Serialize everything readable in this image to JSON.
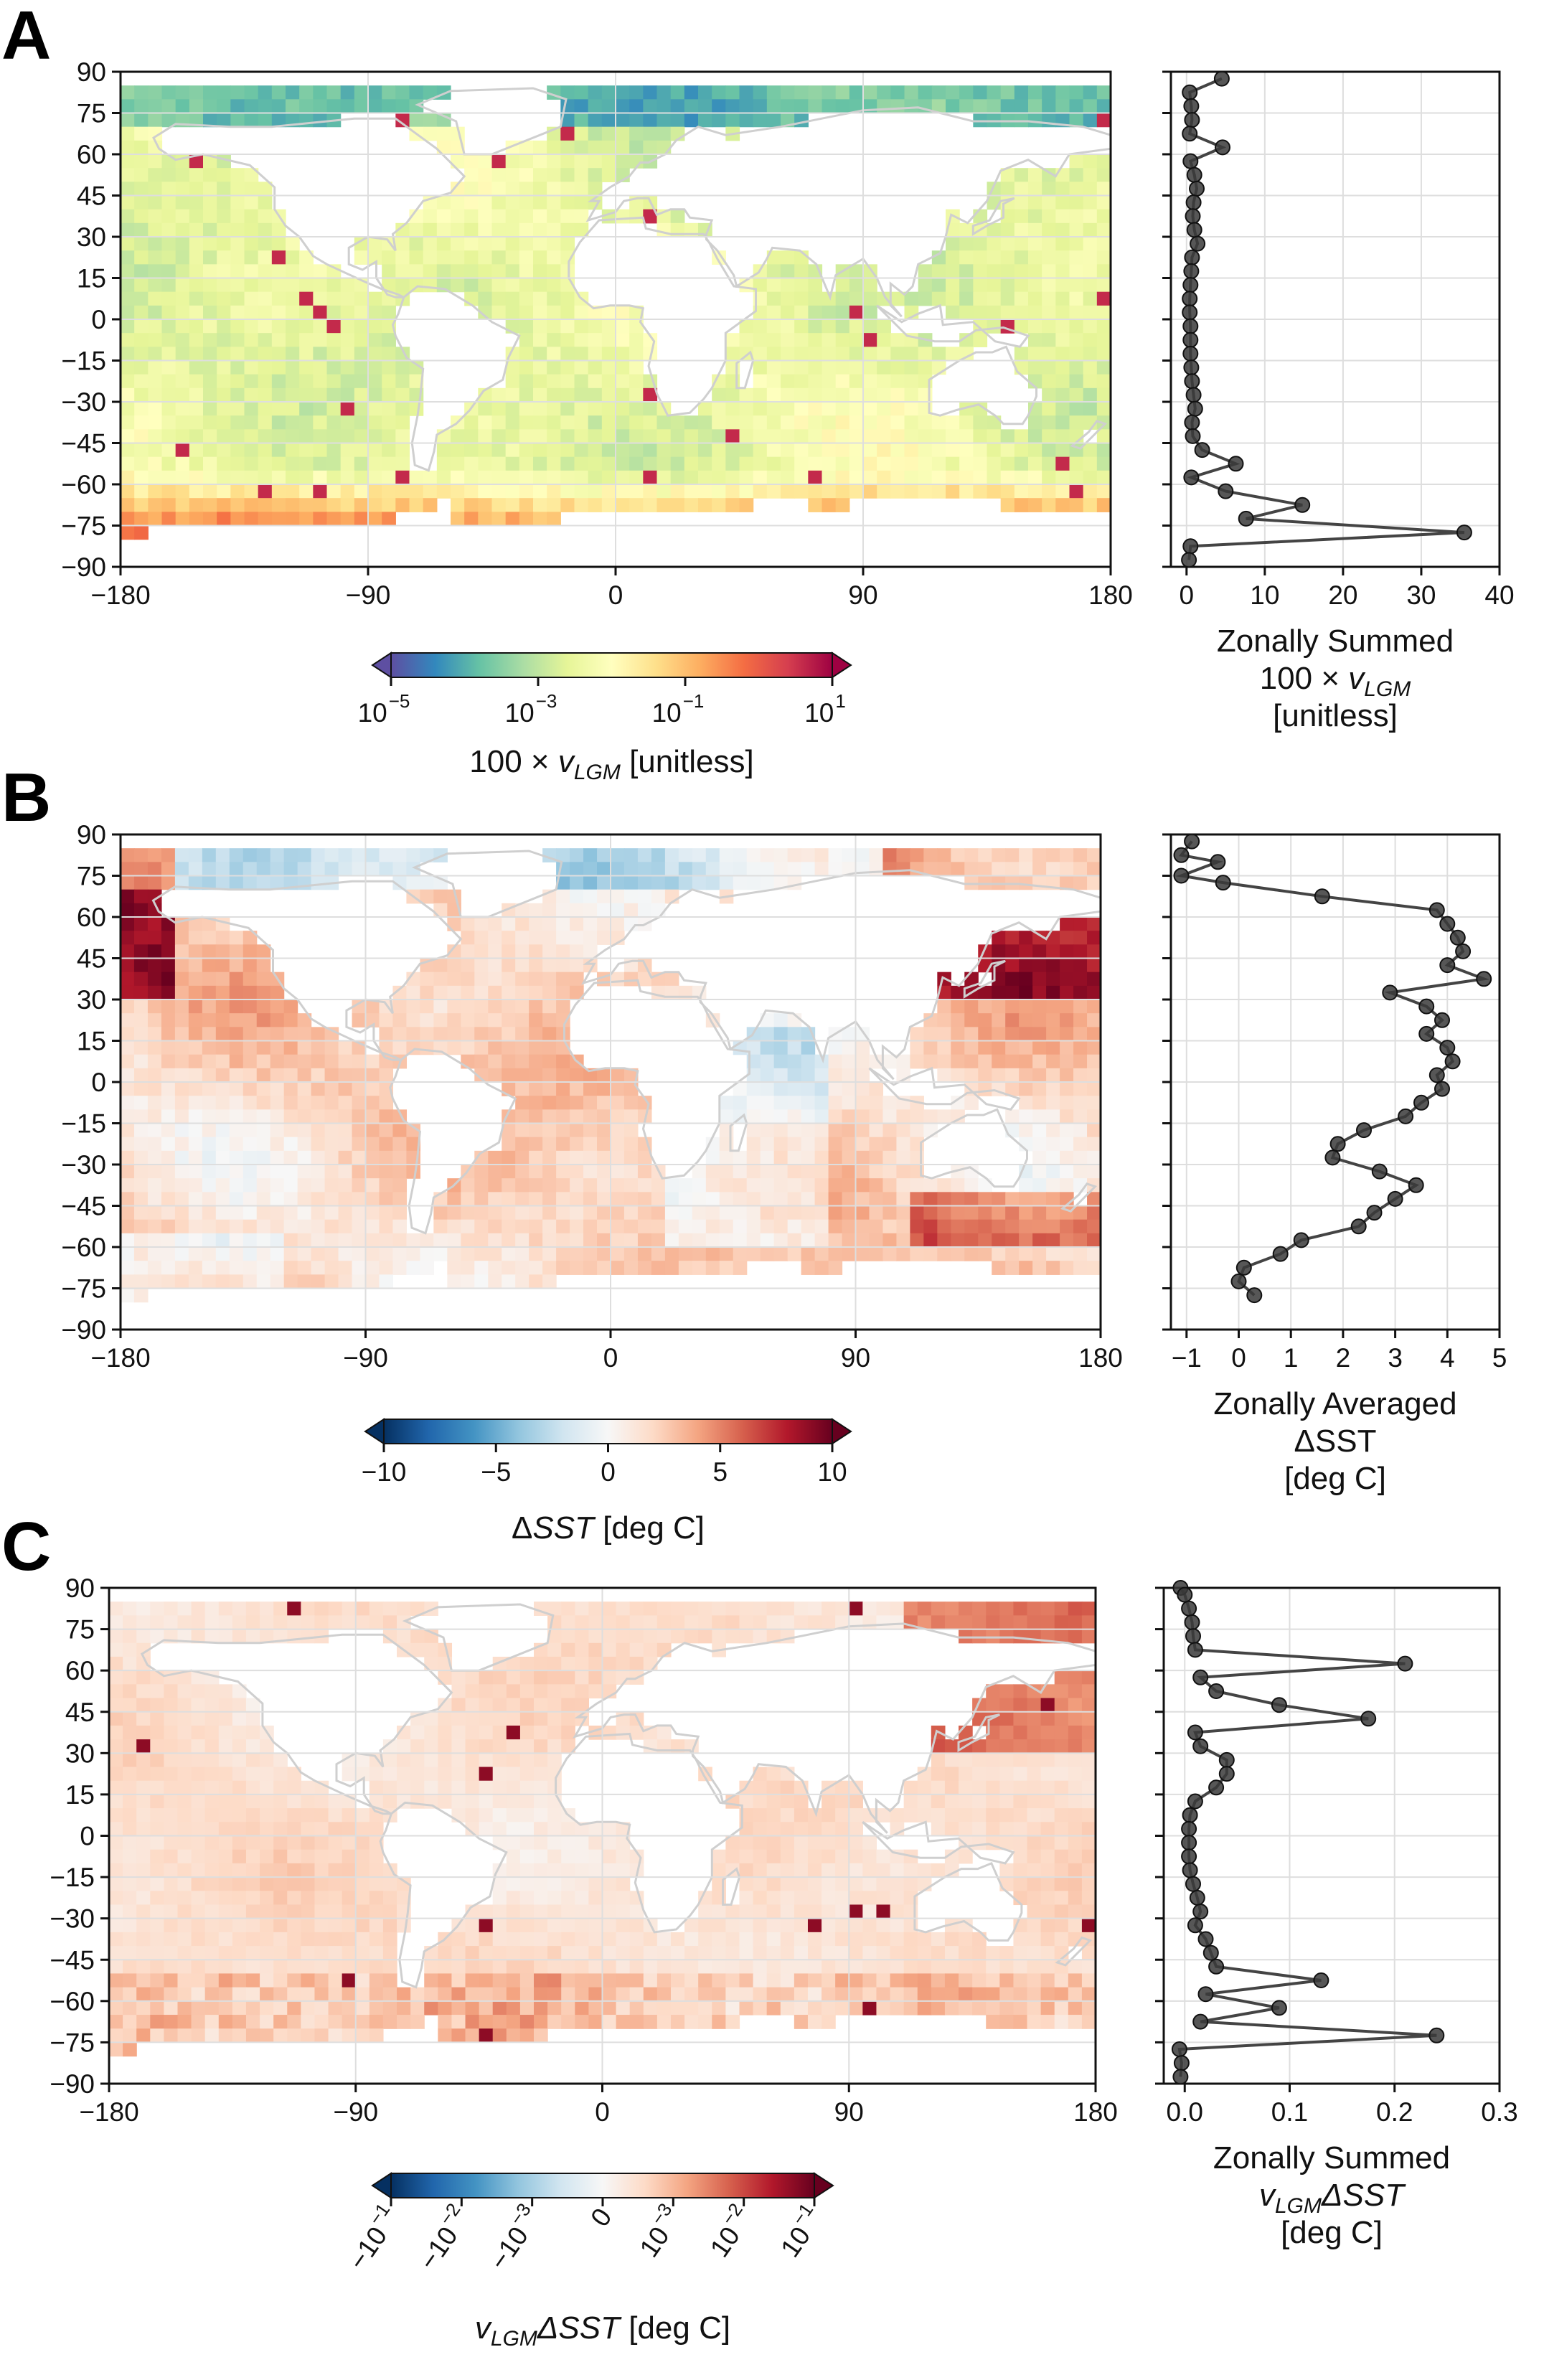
{
  "colors": {
    "spectral_r": [
      "#5e4fa2",
      "#3288bd",
      "#66c2a5",
      "#abdda4",
      "#e6f598",
      "#ffffbf",
      "#fee08b",
      "#fdae61",
      "#f46d43",
      "#d53e4f",
      "#9e0142"
    ],
    "rdbu_r": [
      "#053061",
      "#2166ac",
      "#4393c3",
      "#92c5de",
      "#d1e5f0",
      "#f7f7f7",
      "#fddbc7",
      "#f4a582",
      "#d6604d",
      "#b2182b",
      "#67001f"
    ],
    "land": "#ffffff",
    "coast": "#cfcfcf",
    "grid": "#dedede",
    "profile_line": "#444444",
    "profile_marker": "#3a3a3a"
  },
  "panels": [
    {
      "letter": "A",
      "map": {
        "x_ticks": [
          "−180",
          "−90",
          "0",
          "90",
          "180"
        ],
        "y_ticks": [
          "90",
          "75",
          "60",
          "45",
          "30",
          "15",
          "0",
          "−15",
          "−30",
          "−45",
          "−60",
          "−75",
          "−90"
        ],
        "xlim": [
          -180,
          180
        ],
        "ylim": [
          -90,
          90
        ]
      },
      "colorbar": {
        "ticks": [
          {
            "base": "10",
            "exp": "−5"
          },
          {
            "base": "10",
            "exp": "−3"
          },
          {
            "base": "10",
            "exp": "−1"
          },
          {
            "base": "10",
            "exp": "1"
          }
        ],
        "label_parts": [
          "100 × ",
          "v",
          "LGM",
          " [unitless]"
        ],
        "scale": "log"
      },
      "profile": {
        "x_ticks": [
          "0",
          "10",
          "20",
          "30",
          "40"
        ],
        "xlim": [
          -2,
          40
        ],
        "xlabel_lines": [
          "Zonally Summed",
          "100 × v_LGM",
          "[unitless]"
        ],
        "xlabel_parts": {
          "line1": "Zonally Summed",
          "line2_pre": "100 × ",
          "line2_var": "v",
          "line2_sub": "LGM",
          "line3": "[unitless]"
        }
      }
    },
    {
      "letter": "B",
      "map": {
        "x_ticks": [
          "−180",
          "−90",
          "0",
          "90",
          "180"
        ],
        "y_ticks": [
          "90",
          "75",
          "60",
          "45",
          "30",
          "15",
          "0",
          "−15",
          "−30",
          "−45",
          "−60",
          "−75",
          "−90"
        ],
        "xlim": [
          -180,
          180
        ],
        "ylim": [
          -90,
          90
        ]
      },
      "colorbar": {
        "ticks": [
          "−10",
          "−5",
          "0",
          "5",
          "10"
        ],
        "label_parts": [
          "Δ",
          "SST",
          " [deg C]"
        ],
        "range": [
          -10,
          10
        ]
      },
      "profile": {
        "x_ticks": [
          "−1",
          "0",
          "1",
          "2",
          "3",
          "4",
          "5"
        ],
        "xlim": [
          -1.3,
          5
        ],
        "xlabel_lines": [
          "Zonally Averaged",
          "ΔSST",
          "[deg C]"
        ]
      }
    },
    {
      "letter": "C",
      "map": {
        "x_ticks": [
          "−180",
          "−90",
          "0",
          "90",
          "180"
        ],
        "y_ticks": [
          "90",
          "75",
          "60",
          "45",
          "30",
          "15",
          "0",
          "−15",
          "−30",
          "−45",
          "−60",
          "−75",
          "−90"
        ],
        "xlim": [
          -180,
          180
        ],
        "ylim": [
          -90,
          90
        ]
      },
      "colorbar": {
        "ticks": [
          {
            "base": "−10",
            "exp": "−1"
          },
          {
            "base": "−10",
            "exp": "−2"
          },
          {
            "base": "−10",
            "exp": "−3"
          },
          {
            "base": "0",
            "exp": ""
          },
          {
            "base": "10",
            "exp": "−3"
          },
          {
            "base": "10",
            "exp": "−2"
          },
          {
            "base": "10",
            "exp": "−1"
          }
        ],
        "label_parts": [
          "v",
          "LGM",
          "ΔSST",
          " [deg C]"
        ],
        "scale": "symlog"
      },
      "profile": {
        "x_ticks": [
          "0.0",
          "0.1",
          "0.2",
          "0.3"
        ],
        "xlim": [
          -0.02,
          0.3
        ],
        "xlabel_lines": [
          "Zonally Summed",
          "v_LGM ΔSST",
          "[deg C]"
        ],
        "xlabel_parts": {
          "line1": "Zonally Summed",
          "line2_var": "v",
          "line2_sub": "LGM",
          "line2_post": "ΔSST",
          "line3": "[deg C]"
        }
      }
    }
  ],
  "chart_data": [
    {
      "type": "heatmap",
      "title": "",
      "xlabel": "",
      "ylabel": "",
      "xlim": [
        -180,
        180
      ],
      "ylim": [
        -90,
        90
      ],
      "colorbar_label": "100 × v_LGM [unitless]",
      "color_scale": "log",
      "color_range": [
        1e-05,
        10
      ],
      "description_values": "gridded ocean field; mostly ~1e-3 to 1e-2, high near Antarctic margin (~1), low (~1e-5) in patches near Antarctica"
    },
    {
      "type": "line",
      "xlabel": "Zonally Summed 100 × v_LGM [unitless]",
      "xlim": [
        -2,
        40
      ],
      "ylim": [
        -90,
        90
      ],
      "x": [
        4.5,
        0.4,
        0.6,
        0.7,
        0.4,
        4.6,
        0.5,
        1.0,
        1.3,
        0.9,
        0.8,
        1.0,
        1.4,
        0.7,
        0.6,
        0.5,
        0.4,
        0.4,
        0.5,
        0.5,
        0.5,
        0.6,
        0.7,
        0.9,
        1.1,
        0.7,
        0.8,
        2.0,
        6.3,
        0.6,
        5.0,
        14.8,
        7.6,
        35.5,
        0.5,
        0.3
      ],
      "y": [
        87.5,
        82.5,
        77.5,
        72.5,
        67.5,
        62.5,
        57.5,
        52.5,
        47.5,
        42.5,
        37.5,
        32.5,
        27.5,
        22.5,
        17.5,
        12.5,
        7.5,
        2.5,
        -2.5,
        -7.5,
        -12.5,
        -17.5,
        -22.5,
        -27.5,
        -32.5,
        -37.5,
        -42.5,
        -47.5,
        -52.5,
        -57.5,
        -62.5,
        -67.5,
        -72.5,
        -77.5,
        -82.5,
        -87.5
      ]
    },
    {
      "type": "heatmap",
      "xlim": [
        -180,
        180
      ],
      "ylim": [
        -90,
        90
      ],
      "colorbar_label": "ΔSST [deg C]",
      "color_range": [
        -10,
        10
      ]
    },
    {
      "type": "line",
      "xlabel": "Zonally Averaged ΔSST [deg C]",
      "xlim": [
        -1.3,
        5
      ],
      "ylim": [
        -90,
        90
      ],
      "x": [
        -0.9,
        -1.1,
        -0.4,
        -1.1,
        -0.3,
        1.6,
        3.8,
        4.0,
        4.2,
        4.3,
        4.0,
        4.7,
        2.9,
        3.6,
        3.9,
        3.6,
        4.0,
        4.1,
        3.8,
        3.9,
        3.5,
        3.2,
        2.4,
        1.9,
        1.8,
        2.7,
        3.4,
        3.0,
        2.6,
        2.3,
        1.2,
        0.8,
        0.1,
        0.0,
        0.3
      ],
      "y": [
        87.5,
        82.5,
        80.0,
        75.0,
        72.5,
        67.5,
        62.5,
        57.5,
        52.5,
        47.5,
        42.5,
        37.5,
        32.5,
        27.5,
        22.5,
        17.5,
        12.5,
        7.5,
        2.5,
        -2.5,
        -7.5,
        -12.5,
        -17.5,
        -22.5,
        -27.5,
        -32.5,
        -37.5,
        -42.5,
        -47.5,
        -52.5,
        -57.5,
        -62.5,
        -67.5,
        -72.5,
        -77.5
      ]
    },
    {
      "type": "heatmap",
      "xlim": [
        -180,
        180
      ],
      "ylim": [
        -90,
        90
      ],
      "colorbar_label": "v_LGM ΔSST [deg C]",
      "color_scale": "symlog",
      "color_range": [
        -0.1,
        0.1
      ]
    },
    {
      "type": "line",
      "xlabel": "Zonally Summed v_LGM ΔSST [deg C]",
      "xlim": [
        -0.02,
        0.3
      ],
      "ylim": [
        -90,
        90
      ],
      "x": [
        -0.004,
        0.0,
        0.004,
        0.007,
        0.008,
        0.01,
        0.21,
        0.015,
        0.03,
        0.09,
        0.175,
        0.01,
        0.015,
        0.04,
        0.04,
        0.03,
        0.01,
        0.005,
        0.004,
        0.004,
        0.004,
        0.005,
        0.008,
        0.012,
        0.015,
        0.01,
        0.02,
        0.025,
        0.03,
        0.13,
        0.02,
        0.09,
        0.015,
        0.24,
        -0.005,
        -0.003,
        -0.004
      ],
      "y": [
        90.0,
        87.5,
        82.5,
        77.5,
        72.5,
        67.5,
        62.5,
        57.5,
        52.5,
        47.5,
        42.5,
        37.5,
        32.5,
        27.5,
        22.5,
        17.5,
        12.5,
        7.5,
        2.5,
        -2.5,
        -7.5,
        -12.5,
        -17.5,
        -22.5,
        -27.5,
        -32.5,
        -37.5,
        -42.5,
        -47.5,
        -52.5,
        -57.5,
        -62.5,
        -67.5,
        -72.5,
        -77.5,
        -82.5,
        -87.5
      ]
    }
  ]
}
